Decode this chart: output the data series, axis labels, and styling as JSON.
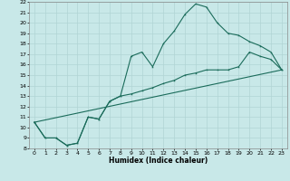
{
  "xlabel": "Humidex (Indice chaleur)",
  "bg_color": "#c8e8e8",
  "grid_color": "#b0d4d4",
  "line_color": "#1a6b5a",
  "xlim": [
    -0.5,
    23.5
  ],
  "ylim": [
    8,
    22
  ],
  "xticks": [
    0,
    1,
    2,
    3,
    4,
    5,
    6,
    7,
    8,
    9,
    10,
    11,
    12,
    13,
    14,
    15,
    16,
    17,
    18,
    19,
    20,
    21,
    22,
    23
  ],
  "yticks": [
    8,
    9,
    10,
    11,
    12,
    13,
    14,
    15,
    16,
    17,
    18,
    19,
    20,
    21,
    22
  ],
  "line1_x": [
    0,
    1,
    2,
    3,
    4,
    5,
    6,
    7,
    8,
    9,
    10,
    11,
    12,
    13,
    14,
    15,
    16,
    17,
    18,
    19,
    20,
    21,
    22,
    23
  ],
  "line1_y": [
    10.5,
    9.0,
    9.0,
    8.3,
    8.5,
    11.0,
    10.8,
    12.5,
    13.0,
    16.8,
    17.2,
    15.8,
    18.0,
    19.2,
    20.8,
    21.8,
    21.5,
    20.0,
    19.0,
    18.8,
    18.2,
    17.8,
    17.2,
    15.5
  ],
  "line2_x": [
    0,
    1,
    2,
    3,
    4,
    5,
    6,
    7,
    8,
    9,
    10,
    11,
    12,
    13,
    14,
    15,
    16,
    17,
    18,
    19,
    20,
    21,
    22,
    23
  ],
  "line2_y": [
    10.5,
    9.0,
    9.0,
    8.3,
    8.5,
    11.0,
    10.8,
    12.5,
    13.0,
    13.2,
    13.5,
    13.8,
    14.2,
    14.5,
    15.0,
    15.2,
    15.5,
    15.5,
    15.5,
    15.8,
    17.2,
    16.8,
    16.5,
    15.5
  ],
  "line3_x": [
    0,
    23
  ],
  "line3_y": [
    10.5,
    15.5
  ]
}
